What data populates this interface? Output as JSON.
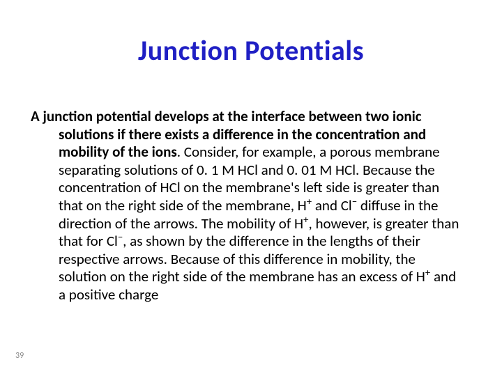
{
  "title": {
    "text": "Junction Potentials",
    "color": "#1f1fc4",
    "fontsize": 40
  },
  "body": {
    "color": "#000000",
    "fontsize": 21,
    "lead_bold": "A junction potential develops at the interface between two ionic solutions if there exists a difference in the concentration and mobility of the ions",
    "rest_html": ". Consider, for example, a porous membrane separating solutions of 0. 1 M HCl  and 0. 01 M HCl. Because the concentration of HCl on the membrane's left side is greater than that on the right side of the membrane,  H<sup>+</sup>  and Cl<sup>−</sup> diffuse in the direction of the arrows. The mobility of H<sup>+</sup>, however, is greater than that for Cl<sup>−</sup>, as shown by the difference in the lengths of their respective arrows. Because of this difference in mobility, the solution on the right side of the membrane has an excess of H<sup>+</sup> and a positive charge"
  },
  "page_number": {
    "value": "39",
    "color": "#8a8a8a",
    "fontsize": 12
  },
  "background_color": "#ffffff"
}
